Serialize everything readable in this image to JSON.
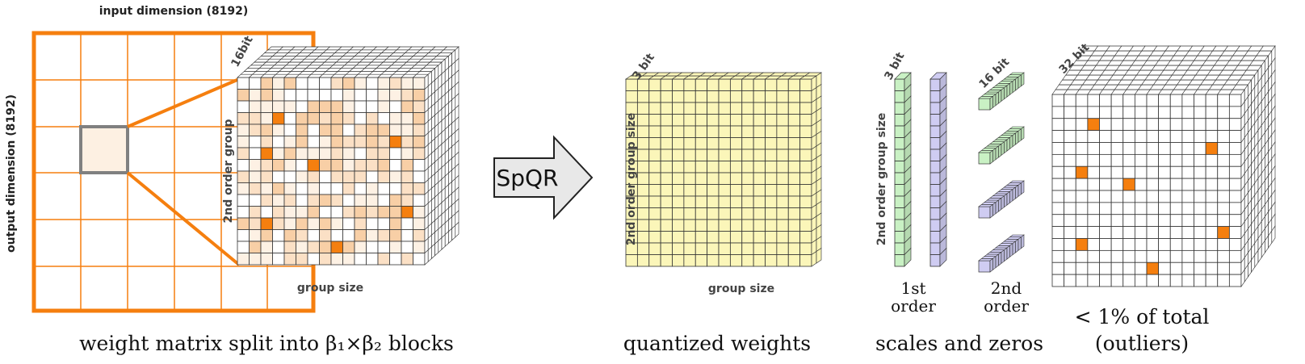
{
  "labels": {
    "input_dimension": "input dimension (8192)",
    "output_dimension": "output dimension (8192)",
    "bit16_left": "16bit",
    "second_order_group": "2nd order group",
    "group_size_left": "group size",
    "spqr": "SpQR",
    "bit3_quant": "3 bit",
    "second_order_group_size_quant": "2nd order group size",
    "group_size_quant": "group size",
    "bit3_scales": "3 bit",
    "second_order_group_size_scales": "2nd order group size",
    "bit16_scales": "16 bit",
    "first_order_line1": "1st",
    "first_order_line2": "order",
    "second_order_line1": "2nd",
    "second_order_line2": "order",
    "bit32_outliers": "32 bit",
    "outliers_line1": "< 1% of total",
    "outliers_line2": "(outliers)"
  },
  "captions": {
    "weight_matrix": "weight matrix split into β₁×β₂ blocks",
    "quantized": "quantized weights",
    "scales": "scales and zeros"
  },
  "colors": {
    "orange": "#f57f0f",
    "cream": "#fdf4e6",
    "yellow": "#fbf6b9",
    "green": "#c9f1c4",
    "violet": "#cfccf2",
    "gray_box": "#808080",
    "arrow_fill": "#e8e8e8"
  }
}
